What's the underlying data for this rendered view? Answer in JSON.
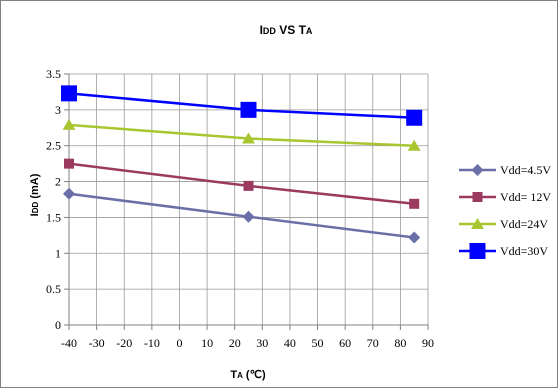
{
  "chart_data": {
    "type": "line",
    "title": "IDD VS TA",
    "title_parts": {
      "main": "I",
      "sub": "DD",
      "mid": " VS T",
      "sub2": "A"
    },
    "xlabel": "TA (℃)",
    "xlabel_parts": {
      "main": "T",
      "sub": "A",
      "rest": " (℃)"
    },
    "ylabel": "IDD (mA)",
    "ylabel_parts": {
      "main": "I",
      "sub": "DD",
      "rest": " (mA)"
    },
    "xlim": [
      -40,
      90
    ],
    "ylim": [
      0,
      3.5
    ],
    "x_ticks": [
      -40,
      -30,
      -20,
      -10,
      0,
      10,
      20,
      30,
      40,
      50,
      60,
      70,
      80,
      90
    ],
    "y_ticks": [
      0,
      0.5,
      1,
      1.5,
      2,
      2.5,
      3,
      3.5
    ],
    "grid": true,
    "legend_position": "right",
    "x": [
      -40,
      25,
      85
    ],
    "series": [
      {
        "name": "Vdd=4.5V",
        "values": [
          1.83,
          1.51,
          1.22
        ],
        "color": "#6b6fa8",
        "marker": "diamond"
      },
      {
        "name": "Vdd= 12V",
        "values": [
          2.25,
          1.94,
          1.69
        ],
        "color": "#9b3a5e",
        "marker": "square"
      },
      {
        "name": "Vdd=24V",
        "values": [
          2.79,
          2.6,
          2.5
        ],
        "color": "#a8c630",
        "marker": "triangle"
      },
      {
        "name": "Vdd=30V",
        "values": [
          3.23,
          3.0,
          2.89
        ],
        "color": "#0000ff",
        "marker": "bigsquare"
      }
    ]
  }
}
